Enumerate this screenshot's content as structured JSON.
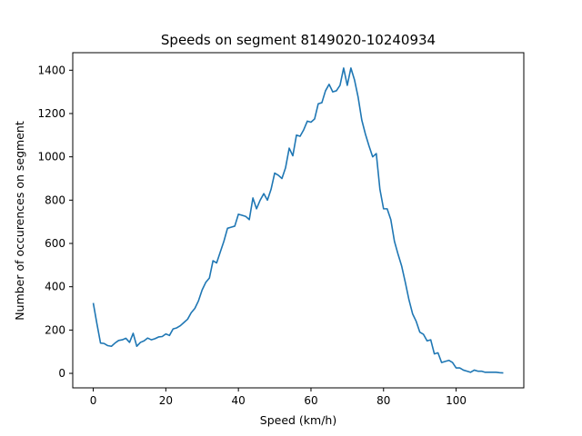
{
  "chart_data": {
    "type": "line",
    "title": "Speeds on segment 8149020-10240934",
    "xlabel": "Speed (km/h)",
    "ylabel": "Number of occurences on segment",
    "xlim": [
      -5.65,
      118.65
    ],
    "ylim": [
      -67,
      1481
    ],
    "xticks": [
      0,
      20,
      40,
      60,
      80,
      100
    ],
    "yticks": [
      0,
      200,
      400,
      600,
      800,
      1000,
      1200,
      1400
    ],
    "grid": false,
    "legend": "none",
    "line_color": "#1f77b4",
    "series": [
      {
        "x": [
          0,
          1,
          2,
          3,
          4,
          5,
          6,
          7,
          8,
          9,
          10,
          11,
          12,
          13,
          14,
          15,
          16,
          17,
          18,
          19,
          20,
          21,
          22,
          23,
          24,
          25,
          26,
          27,
          28,
          29,
          30,
          31,
          32,
          33,
          34,
          35,
          36,
          37,
          38,
          39,
          40,
          41,
          42,
          43,
          44,
          45,
          46,
          47,
          48,
          49,
          50,
          51,
          52,
          53,
          54,
          55,
          56,
          57,
          58,
          59,
          60,
          61,
          62,
          63,
          64,
          65,
          66,
          67,
          68,
          69,
          70,
          71,
          72,
          73,
          74,
          75,
          76,
          77,
          78,
          79,
          80,
          81,
          82,
          83,
          84,
          85,
          86,
          87,
          88,
          89,
          90,
          91,
          92,
          93,
          94,
          95,
          96,
          97,
          98,
          99,
          100,
          101,
          102,
          103,
          104,
          105,
          106,
          107,
          108,
          109,
          110,
          111,
          112,
          113
        ],
        "y": [
          325,
          230,
          140,
          138,
          128,
          125,
          140,
          152,
          155,
          162,
          143,
          185,
          125,
          143,
          150,
          163,
          155,
          160,
          168,
          170,
          182,
          175,
          205,
          210,
          220,
          235,
          250,
          280,
          300,
          335,
          385,
          420,
          440,
          520,
          510,
          560,
          610,
          670,
          675,
          680,
          735,
          730,
          725,
          710,
          810,
          760,
          800,
          830,
          800,
          850,
          925,
          915,
          900,
          950,
          1040,
          1005,
          1100,
          1095,
          1125,
          1165,
          1160,
          1175,
          1245,
          1250,
          1305,
          1335,
          1300,
          1305,
          1330,
          1410,
          1330,
          1410,
          1355,
          1275,
          1170,
          1105,
          1050,
          1000,
          1015,
          850,
          760,
          760,
          710,
          610,
          550,
          495,
          420,
          340,
          275,
          240,
          190,
          180,
          150,
          155,
          90,
          95,
          50,
          55,
          60,
          50,
          25,
          25,
          15,
          10,
          5,
          15,
          10,
          10,
          5,
          5,
          5,
          5,
          3,
          2
        ]
      }
    ]
  }
}
